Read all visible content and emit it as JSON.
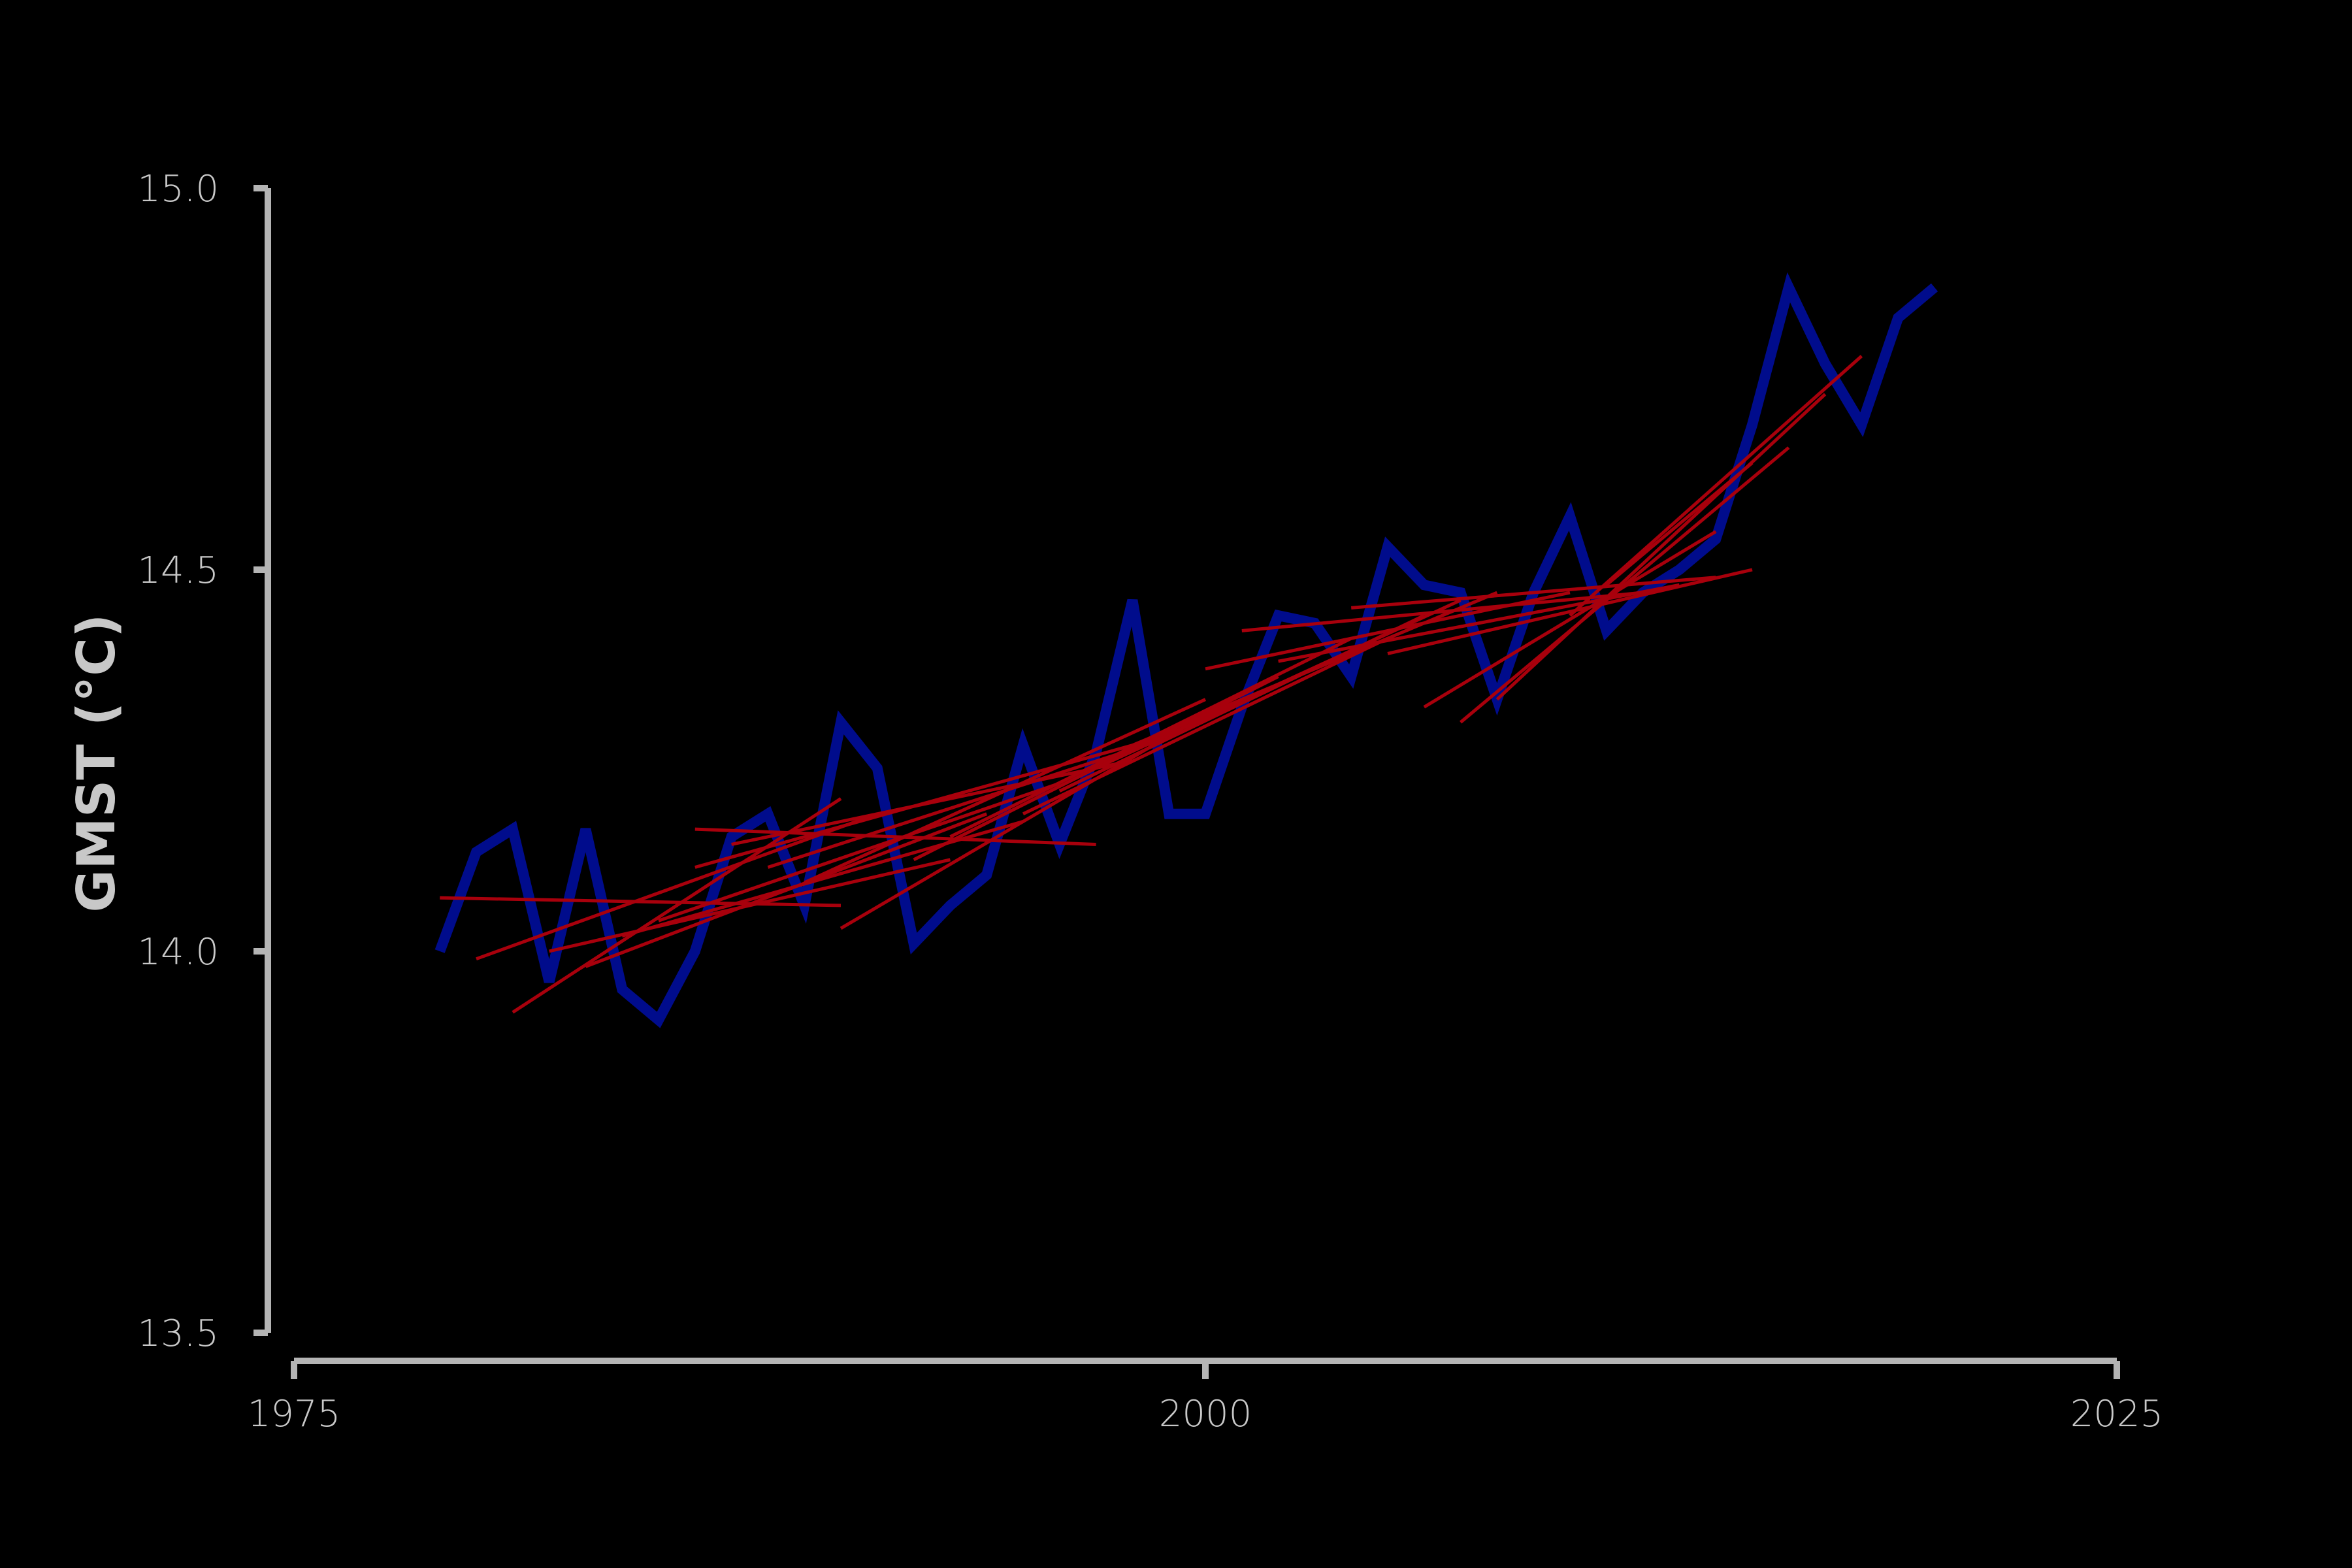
{
  "chart_data": {
    "type": "line",
    "ylabel": "GMST (°C)",
    "xlabel": "",
    "xlim": [
      1975,
      2025
    ],
    "ylim": [
      13.5,
      15.0
    ],
    "x_ticks": [
      1975,
      2000,
      2025
    ],
    "x_tick_labels": [
      "1975",
      "2000",
      "2025"
    ],
    "y_ticks": [
      13.5,
      14.0,
      14.5,
      15.0
    ],
    "y_tick_labels": [
      "13.5",
      "14.0",
      "14.5",
      "15.0"
    ],
    "grid": false,
    "colors": {
      "series": "#000c8c",
      "trend": "#a8000c",
      "axis": "#b4b4b4",
      "background": "#000000"
    },
    "series": [
      {
        "x": [
          1979,
          1980,
          1981,
          1982,
          1983,
          1984,
          1985,
          1986,
          1987,
          1988,
          1989,
          1990,
          1991,
          1992,
          1993,
          1994,
          1995,
          1996,
          1997,
          1998,
          1999,
          2000,
          2001,
          2002,
          2003,
          2004,
          2005,
          2006,
          2007,
          2008,
          2009,
          2010,
          2011,
          2012,
          2013,
          2014,
          2015,
          2016,
          2017,
          2018,
          2019,
          2020
        ],
        "values": [
          14.0,
          14.13,
          14.16,
          13.96,
          14.16,
          13.95,
          13.91,
          14.0,
          14.15,
          14.18,
          14.06,
          14.3,
          14.24,
          14.01,
          14.06,
          14.1,
          14.27,
          14.14,
          14.26,
          14.46,
          14.18,
          14.18,
          14.32,
          14.44,
          14.43,
          14.36,
          14.53,
          14.48,
          14.47,
          14.33,
          14.47,
          14.57,
          14.42,
          14.47,
          14.5,
          14.54,
          14.69,
          14.87,
          14.77,
          14.69,
          14.83,
          14.87
        ]
      }
    ],
    "trend_lines": [
      {
        "x": [
          1979,
          1990
        ],
        "y": [
          14.07,
          14.06
        ]
      },
      {
        "x": [
          1980,
          1991
        ],
        "y": [
          13.99,
          14.18
        ]
      },
      {
        "x": [
          1981,
          1990
        ],
        "y": [
          13.92,
          14.2
        ]
      },
      {
        "x": [
          1982,
          1993
        ],
        "y": [
          14.0,
          14.12
        ]
      },
      {
        "x": [
          1983,
          1994
        ],
        "y": [
          13.98,
          14.18
        ]
      },
      {
        "x": [
          1984,
          1995
        ],
        "y": [
          14.02,
          14.17
        ]
      },
      {
        "x": [
          1985,
          1996
        ],
        "y": [
          14.04,
          14.22
        ]
      },
      {
        "x": [
          1986,
          1997
        ],
        "y": [
          14.16,
          14.14
        ]
      },
      {
        "x": [
          1986,
          1998
        ],
        "y": [
          14.11,
          14.27
        ]
      },
      {
        "x": [
          1987,
          1998
        ],
        "y": [
          14.14,
          14.25
        ]
      },
      {
        "x": [
          1988,
          1999
        ],
        "y": [
          14.11,
          14.28
        ]
      },
      {
        "x": [
          1989,
          2000
        ],
        "y": [
          14.09,
          14.33
        ]
      },
      {
        "x": [
          1990,
          2000
        ],
        "y": [
          14.03,
          14.31
        ]
      },
      {
        "x": [
          1992,
          2002
        ],
        "y": [
          14.12,
          14.36
        ]
      },
      {
        "x": [
          1993,
          2004
        ],
        "y": [
          14.15,
          14.41
        ]
      },
      {
        "x": [
          1995,
          2005
        ],
        "y": [
          14.18,
          14.41
        ]
      },
      {
        "x": [
          1996,
          2006
        ],
        "y": [
          14.21,
          14.44
        ]
      },
      {
        "x": [
          1997,
          2007
        ],
        "y": [
          14.24,
          14.46
        ]
      },
      {
        "x": [
          1998,
          2008
        ],
        "y": [
          14.27,
          14.47
        ]
      },
      {
        "x": [
          2000,
          2010
        ],
        "y": [
          14.37,
          14.47
        ]
      },
      {
        "x": [
          2001,
          2012
        ],
        "y": [
          14.42,
          14.47
        ]
      },
      {
        "x": [
          2002,
          2013
        ],
        "y": [
          14.38,
          14.48
        ]
      },
      {
        "x": [
          2004,
          2014
        ],
        "y": [
          14.45,
          14.49
        ]
      },
      {
        "x": [
          2005,
          2015
        ],
        "y": [
          14.39,
          14.5
        ]
      },
      {
        "x": [
          2006,
          2014
        ],
        "y": [
          14.32,
          14.55
        ]
      },
      {
        "x": [
          2007,
          2016
        ],
        "y": [
          14.3,
          14.66
        ]
      },
      {
        "x": [
          2008,
          2017
        ],
        "y": [
          14.33,
          14.73
        ]
      },
      {
        "x": [
          2010,
          2018
        ],
        "y": [
          14.44,
          14.78
        ]
      },
      {
        "x": [
          2011,
          2015
        ],
        "y": [
          14.48,
          14.64
        ]
      }
    ]
  }
}
